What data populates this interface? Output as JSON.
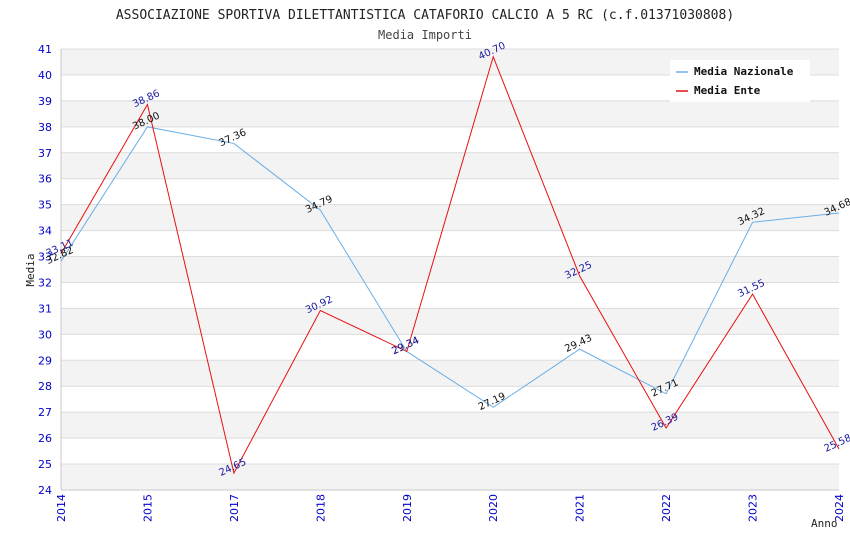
{
  "chart_data": {
    "type": "line",
    "title": "ASSOCIAZIONE SPORTIVA DILETTANTISTICA CATAFORIO CALCIO A 5 RC (c.f.01371030808)",
    "subtitle": "Media Importi",
    "xlabel": "Anno",
    "ylabel": "Media",
    "ylim": [
      24,
      41
    ],
    "yticks": [
      "24",
      "25",
      "26",
      "27",
      "28",
      "29",
      "30",
      "31",
      "32",
      "33",
      "34",
      "35",
      "36",
      "37",
      "38",
      "39",
      "40",
      "41"
    ],
    "categories": [
      "2014",
      "2015",
      "2017",
      "2018",
      "2019",
      "2020",
      "2021",
      "2022",
      "2023",
      "2024"
    ],
    "series": [
      {
        "name": "Media Nazionale",
        "color": "#6aaee6",
        "values": [
          32.82,
          38.0,
          37.36,
          34.79,
          29.34,
          27.19,
          29.43,
          27.71,
          34.32,
          34.68
        ],
        "labels": [
          "32.82",
          "38.00",
          "37.36",
          "34.79",
          "29.34",
          "27.19",
          "29.43",
          "27.71",
          "34.32",
          "34.68"
        ]
      },
      {
        "name": "Media Ente",
        "color": "#e81010",
        "values": [
          33.11,
          38.86,
          24.65,
          30.92,
          29.34,
          40.7,
          32.25,
          26.39,
          31.55,
          25.58
        ],
        "labels": [
          "33.11",
          "38.86",
          "24.65",
          "30.92",
          "29.34",
          "40.70",
          "32.25",
          "26.39",
          "31.55",
          "25.58"
        ]
      }
    ],
    "legend_position": "top-right",
    "grid": true
  }
}
